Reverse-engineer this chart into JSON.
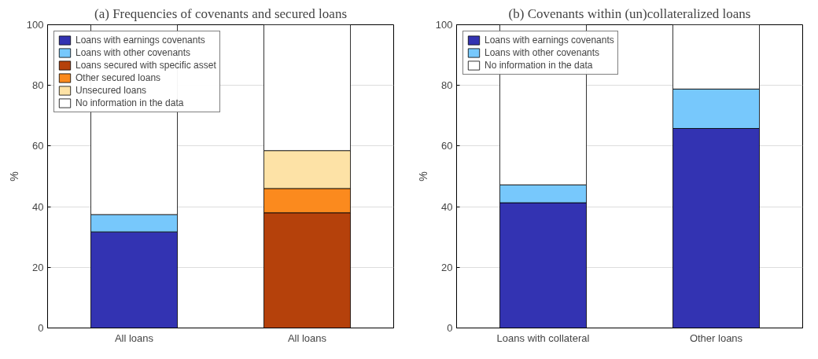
{
  "chart_data": [
    {
      "type": "bar",
      "title": "(a) Frequencies of covenants and secured loans",
      "ylabel": "%",
      "categories": [
        "All loans",
        "All loans"
      ],
      "stacked": true,
      "ylim": [
        0,
        100
      ],
      "yticks": [
        0,
        20,
        40,
        60,
        80,
        100
      ],
      "grid": "y",
      "legend": "top left",
      "series": [
        {
          "name": "Loans with earnings covenants",
          "color": "#3333b2",
          "values": [
            31.7,
            null
          ]
        },
        {
          "name": "Loans with other covenants",
          "color": "#77c8fc",
          "values": [
            5.7,
            null
          ]
        },
        {
          "name": "Loans secured with specific asset",
          "color": "#b5410b",
          "values": [
            null,
            38.0
          ]
        },
        {
          "name": "Other secured loans",
          "color": "#fb8a1e",
          "values": [
            null,
            8.0
          ]
        },
        {
          "name": "Unsecured loans",
          "color": "#fde2a6",
          "values": [
            null,
            12.5
          ]
        },
        {
          "name": "No information in the data",
          "color": "#ffffff",
          "values": [
            62.6,
            41.5
          ]
        }
      ]
    },
    {
      "type": "bar",
      "title": "(b) Covenants within (un)collateralized loans",
      "ylabel": "%",
      "categories": [
        "Loans with collateral",
        "Other loans"
      ],
      "stacked": true,
      "ylim": [
        0,
        100
      ],
      "yticks": [
        0,
        20,
        40,
        60,
        80,
        100
      ],
      "grid": "y",
      "legend": "top left",
      "series": [
        {
          "name": "Loans with earnings covenants",
          "color": "#3333b2",
          "values": [
            41.3,
            65.8
          ]
        },
        {
          "name": "Loans with other covenants",
          "color": "#77c8fc",
          "values": [
            5.9,
            13.0
          ]
        },
        {
          "name": "No information in the data",
          "color": "#ffffff",
          "values": [
            52.8,
            21.2
          ]
        }
      ]
    }
  ]
}
